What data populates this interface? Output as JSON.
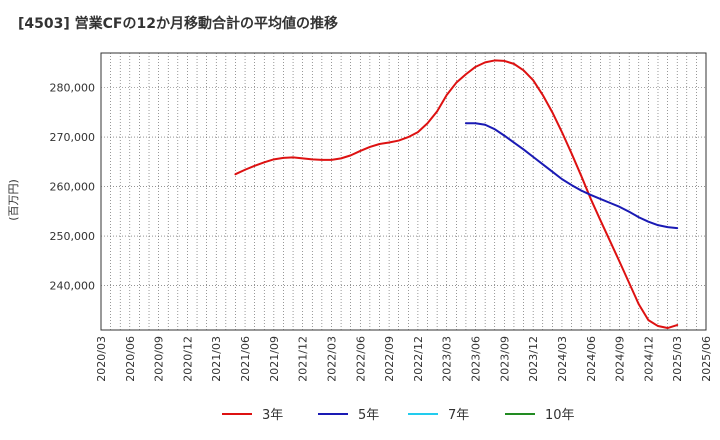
{
  "chart_data": {
    "type": "line",
    "title": "[4503]  営業CFの12か月移動合計の平均値の推移",
    "ylabel": "(百万円)",
    "ylim": [
      231000,
      287000
    ],
    "yticks": [
      240000,
      250000,
      260000,
      270000,
      280000
    ],
    "ytick_labels": [
      "240,000",
      "250,000",
      "260,000",
      "270,000",
      "280,000"
    ],
    "xlim": [
      "2020-03",
      "2025-06"
    ],
    "xtick_labels": [
      "2020/03",
      "2020/06",
      "2020/09",
      "2020/12",
      "2021/03",
      "2021/06",
      "2021/09",
      "2021/12",
      "2022/03",
      "2022/06",
      "2022/09",
      "2022/12",
      "2023/03",
      "2023/06",
      "2023/09",
      "2023/12",
      "2024/03",
      "2024/06",
      "2024/09",
      "2024/12",
      "2025/03",
      "2025/06"
    ],
    "grid": true,
    "legend_position": "bottom",
    "series": [
      {
        "name": "3年",
        "color": "#dd1111",
        "x": [
          "2021-05",
          "2021-06",
          "2021-07",
          "2021-08",
          "2021-09",
          "2021-10",
          "2021-11",
          "2021-12",
          "2022-01",
          "2022-02",
          "2022-03",
          "2022-04",
          "2022-05",
          "2022-06",
          "2022-07",
          "2022-08",
          "2022-09",
          "2022-10",
          "2022-11",
          "2022-12",
          "2023-01",
          "2023-02",
          "2023-03",
          "2023-04",
          "2023-05",
          "2023-06",
          "2023-07",
          "2023-08",
          "2023-09",
          "2023-10",
          "2023-11",
          "2023-12",
          "2024-01",
          "2024-02",
          "2024-03",
          "2024-04",
          "2024-05",
          "2024-06",
          "2024-07",
          "2024-08",
          "2024-09",
          "2024-10",
          "2024-11",
          "2024-12",
          "2025-01",
          "2025-02",
          "2025-03"
        ],
        "values": [
          262500,
          263400,
          264200,
          264900,
          265500,
          265800,
          265900,
          265700,
          265500,
          265400,
          265400,
          265700,
          266300,
          267200,
          268000,
          268600,
          268900,
          269300,
          270000,
          271000,
          272800,
          275200,
          278500,
          281000,
          282700,
          284200,
          285100,
          285500,
          285400,
          284800,
          283500,
          281500,
          278500,
          275000,
          271000,
          266700,
          262200,
          257500,
          253200,
          249000,
          244800,
          240500,
          236200,
          233000,
          231800,
          231400,
          232000
        ],
        "display_points": 47
      },
      {
        "name": "5年",
        "color": "#1a1ab4",
        "x": [
          "2023-05",
          "2023-06",
          "2023-07",
          "2023-08",
          "2023-09",
          "2023-10",
          "2023-11",
          "2023-12",
          "2024-01",
          "2024-02",
          "2024-03",
          "2024-04",
          "2024-05",
          "2024-06",
          "2024-07",
          "2024-08",
          "2024-09",
          "2024-10",
          "2024-11",
          "2024-12",
          "2025-01",
          "2025-02",
          "2025-03"
        ],
        "values": [
          272800,
          272800,
          272500,
          271600,
          270300,
          268900,
          267500,
          266000,
          264500,
          263000,
          261500,
          260300,
          259200,
          258300,
          257500,
          256700,
          255900,
          254900,
          253800,
          252900,
          252200,
          251800,
          251600
        ]
      },
      {
        "name": "7年",
        "color": "#22ccee",
        "x": [],
        "values": []
      },
      {
        "name": "10年",
        "color": "#228b22",
        "x": [],
        "values": []
      }
    ]
  }
}
